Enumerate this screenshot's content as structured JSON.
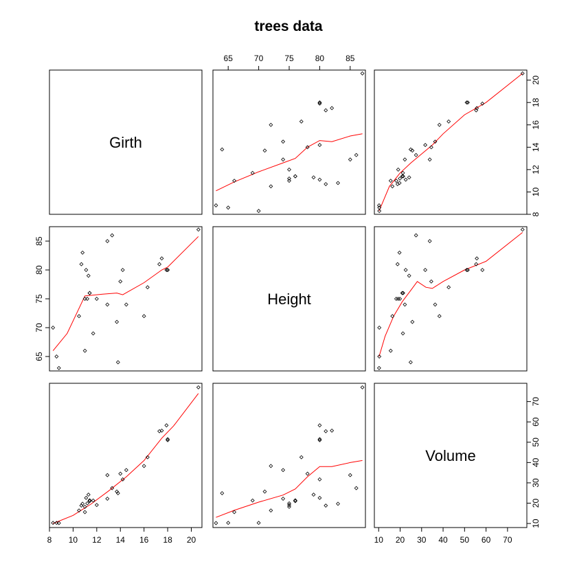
{
  "chart_data": {
    "type": "scatter",
    "title": "trees data",
    "variables": [
      "Girth",
      "Height",
      "Volume"
    ],
    "point_color": "#000000",
    "smooth_color": "#ff0000",
    "axes": {
      "Girth": {
        "range": [
          8.0,
          20.9
        ],
        "ticks": [
          8,
          10,
          12,
          14,
          16,
          18,
          20
        ],
        "tick_labels": [
          "8",
          "10",
          "12",
          "14",
          "16",
          "18",
          "20"
        ]
      },
      "Height": {
        "range": [
          62.5,
          87.5
        ],
        "ticks": [
          65,
          70,
          75,
          80,
          85
        ],
        "tick_labels": [
          "65",
          "70",
          "75",
          "80",
          "85"
        ]
      },
      "Volume": {
        "range": [
          8.0,
          79.0
        ],
        "ticks": [
          10,
          20,
          30,
          40,
          50,
          60,
          70
        ],
        "tick_labels": [
          "10",
          "20",
          "30",
          "40",
          "50",
          "60",
          "70"
        ]
      }
    },
    "data": {
      "Girth": [
        8.3,
        8.6,
        8.8,
        10.5,
        10.7,
        10.8,
        11.0,
        11.0,
        11.1,
        11.2,
        11.3,
        11.4,
        11.4,
        11.7,
        12.0,
        12.9,
        12.9,
        13.3,
        13.7,
        13.8,
        14.0,
        14.2,
        14.5,
        16.0,
        16.3,
        17.3,
        17.5,
        17.9,
        18.0,
        18.0,
        20.6
      ],
      "Height": [
        70,
        65,
        63,
        72,
        81,
        83,
        66,
        75,
        80,
        75,
        79,
        76,
        76,
        69,
        75,
        74,
        85,
        86,
        71,
        64,
        78,
        80,
        74,
        72,
        77,
        81,
        82,
        80,
        80,
        80,
        87
      ],
      "Volume": [
        10.3,
        10.3,
        10.2,
        16.4,
        18.8,
        19.7,
        15.6,
        18.2,
        22.6,
        19.9,
        24.2,
        21.0,
        21.4,
        21.3,
        19.1,
        22.2,
        33.8,
        27.4,
        25.7,
        24.9,
        34.5,
        31.7,
        36.3,
        38.3,
        42.6,
        55.4,
        55.7,
        58.3,
        51.5,
        51.0,
        77.0
      ]
    },
    "smooth": {
      "Height|Girth": {
        "x": [
          8.3,
          9.5,
          11.0,
          12.5,
          13.7,
          14.2,
          16.0,
          17.5,
          18.0,
          20.6
        ],
        "y": [
          66,
          69,
          75.5,
          75.8,
          76,
          75.7,
          77.8,
          80,
          80.5,
          85.8
        ]
      },
      "Volume|Girth": {
        "x": [
          8.3,
          10.0,
          11.5,
          13.0,
          14.5,
          16.0,
          17.5,
          18.5,
          20.6
        ],
        "y": [
          10,
          14,
          19.5,
          26,
          33,
          41,
          52,
          58,
          74
        ]
      },
      "Girth|Height": {
        "x": [
          63,
          66,
          70,
          74,
          76,
          78,
          80,
          82,
          85,
          87
        ],
        "y": [
          10.1,
          10.9,
          11.8,
          12.6,
          13.0,
          14.0,
          14.6,
          14.5,
          15.0,
          15.2
        ]
      },
      "Volume|Height": {
        "x": [
          63,
          66,
          70,
          74,
          76,
          78,
          80,
          82,
          85,
          87
        ],
        "y": [
          13,
          16.5,
          20.5,
          24,
          27,
          33,
          38,
          38,
          40,
          41
        ]
      },
      "Girth|Volume": {
        "x": [
          10.2,
          15,
          20,
          25,
          30,
          35,
          40,
          50,
          60,
          77
        ],
        "y": [
          8.3,
          10.5,
          11.7,
          12.6,
          13.4,
          14.2,
          15.2,
          16.9,
          18.0,
          20.6
        ]
      },
      "Height|Volume": {
        "x": [
          10.2,
          13,
          17,
          21,
          25,
          28,
          32,
          35,
          40,
          50,
          60,
          77
        ],
        "y": [
          65,
          68.5,
          72,
          74.5,
          76.5,
          78,
          77,
          76.8,
          78,
          80,
          81.5,
          86.5
        ]
      }
    },
    "grid": false,
    "legend": "none"
  }
}
